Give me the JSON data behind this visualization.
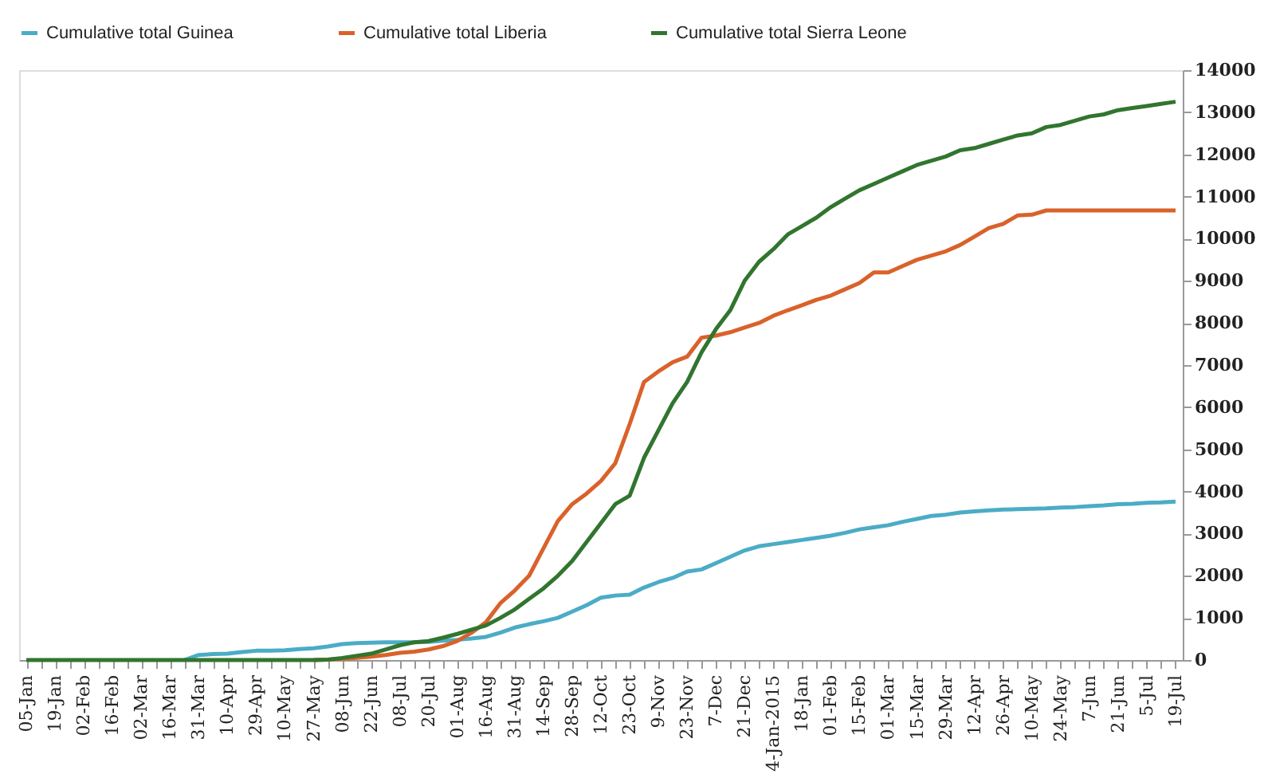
{
  "chart_data": {
    "type": "line",
    "categories": [
      "05-Jan",
      null,
      "19-Jan",
      null,
      "02-Feb",
      null,
      "16-Feb",
      null,
      "02-Mar",
      null,
      "16-Mar",
      null,
      "31-Mar",
      null,
      "10-Apr",
      null,
      "29-Apr",
      null,
      "10-May",
      null,
      "27-May",
      null,
      "08-Jun",
      null,
      "22-Jun",
      null,
      "08-Jul",
      null,
      "20-Jul",
      null,
      "01-Aug",
      null,
      "16-Aug",
      null,
      "31-Aug",
      null,
      "14-Sep",
      null,
      "28-Sep",
      null,
      "12-Oct",
      null,
      "23-Oct",
      null,
      "9-Nov",
      null,
      "23-Nov",
      null,
      "7-Dec",
      null,
      "21-Dec",
      null,
      "4-Jan-2015",
      null,
      "18-Jan",
      null,
      "01-Feb",
      null,
      "15-Feb",
      null,
      "01-Mar",
      null,
      "15-Mar",
      null,
      "29-Mar",
      null,
      "12-Apr",
      null,
      "26-Apr",
      null,
      "10-May",
      null,
      "24-May",
      null,
      "7-Jun",
      null,
      "21-Jun",
      null,
      "5-Jul",
      null,
      "19-Jul"
    ],
    "series": [
      {
        "name": "Cumulative total Guinea",
        "color": "#4bacc6",
        "values": [
          null,
          null,
          null,
          null,
          null,
          null,
          null,
          null,
          null,
          null,
          null,
          0,
          120,
          140,
          150,
          190,
          220,
          220,
          230,
          260,
          280,
          320,
          380,
          400,
          410,
          420,
          420,
          420,
          430,
          460,
          480,
          510,
          550,
          650,
          770,
          850,
          920,
          1000,
          1150,
          1300,
          1480,
          1530,
          1550,
          1720,
          1850,
          1950,
          2100,
          2150,
          2300,
          2450,
          2600,
          2700,
          2750,
          2800,
          2850,
          2900,
          2950,
          3020,
          3100,
          3150,
          3200,
          3280,
          3350,
          3420,
          3450,
          3500,
          3530,
          3550,
          3570,
          3580,
          3590,
          3600,
          3620,
          3630,
          3650,
          3670,
          3700,
          3710,
          3730,
          3740,
          3760
        ]
      },
      {
        "name": "Cumulative total Liberia",
        "color": "#d9622b",
        "values": [
          null,
          null,
          null,
          null,
          null,
          null,
          null,
          null,
          null,
          null,
          null,
          null,
          null,
          null,
          null,
          null,
          null,
          null,
          null,
          null,
          0,
          10,
          30,
          50,
          80,
          120,
          170,
          200,
          250,
          330,
          450,
          650,
          900,
          1350,
          1650,
          2000,
          2650,
          3300,
          3700,
          3950,
          4250,
          4670,
          5600,
          6600,
          6850,
          7070,
          7200,
          7650,
          7700,
          7780,
          7890,
          8000,
          8170,
          8300,
          8420,
          8550,
          8650,
          8800,
          8950,
          9200,
          9200,
          9350,
          9500,
          9600,
          9700,
          9850,
          10050,
          10250,
          10350,
          10550,
          10570,
          10670,
          10670,
          10670,
          10670,
          10670,
          10670,
          10670,
          10670,
          10670,
          10670
        ]
      },
      {
        "name": "Cumulative total Sierra Leone",
        "color": "#31752f",
        "values": [
          0,
          0,
          0,
          0,
          0,
          0,
          0,
          0,
          0,
          0,
          0,
          0,
          0,
          0,
          0,
          0,
          0,
          0,
          0,
          0,
          0,
          10,
          50,
          100,
          150,
          250,
          350,
          420,
          450,
          530,
          620,
          720,
          820,
          1000,
          1200,
          1450,
          1700,
          2000,
          2350,
          2800,
          3250,
          3700,
          3900,
          4800,
          5450,
          6100,
          6600,
          7300,
          7850,
          8300,
          9000,
          9450,
          9750,
          10100,
          10300,
          10500,
          10750,
          10950,
          11150,
          11300,
          11450,
          11600,
          11750,
          11850,
          11950,
          12100,
          12150,
          12250,
          12350,
          12450,
          12500,
          12650,
          12700,
          12800,
          12900,
          12950,
          13050,
          13100,
          13150,
          13200,
          13250
        ]
      }
    ],
    "ylim": [
      0,
      14000
    ],
    "yticks": [
      0,
      1000,
      2000,
      3000,
      4000,
      5000,
      6000,
      7000,
      8000,
      9000,
      10000,
      11000,
      12000,
      13000,
      14000
    ],
    "grid": false,
    "legend": "top"
  }
}
